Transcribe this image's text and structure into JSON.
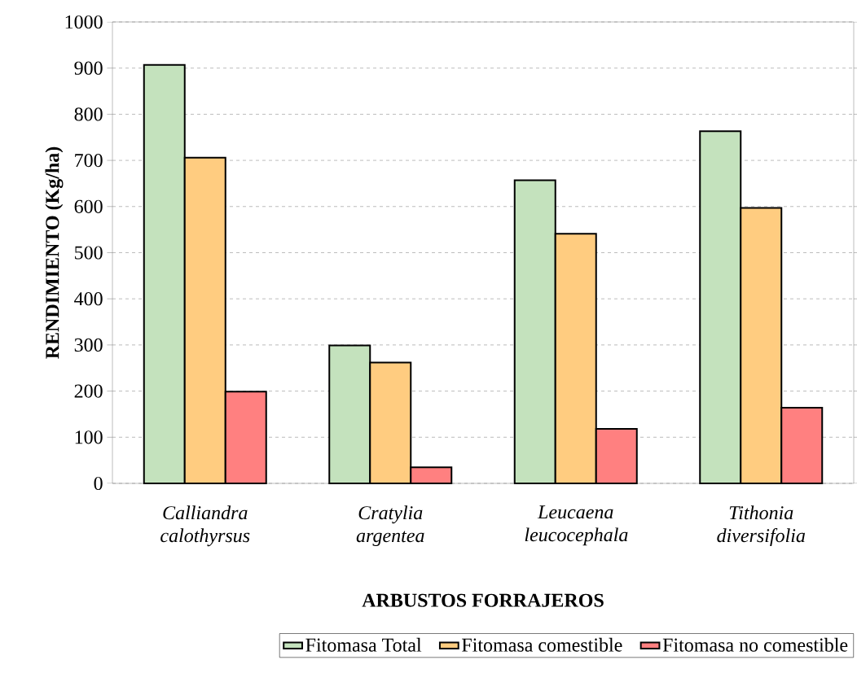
{
  "chart_data": {
    "type": "bar",
    "xlabel": "ARBUSTOS FORRAJEROS",
    "ylabel": "RENDIMIENTO (Kg/ha)",
    "categories": [
      "Calliandra calothyrsus",
      "Cratylia argentea",
      "Leucaena leucocephala",
      "Tithonia diversifolia"
    ],
    "series": [
      {
        "name": "Fitomasa Total",
        "color": "#c4e2bd",
        "values": [
          907,
          299,
          657,
          763
        ]
      },
      {
        "name": "Fitomasa comestible",
        "color": "#ffcc80",
        "values": [
          706,
          262,
          541,
          597
        ]
      },
      {
        "name": "Fitomasa no comestible",
        "color": "#ff8080",
        "values": [
          199,
          35,
          118,
          164
        ]
      }
    ],
    "ylim": [
      0,
      1000
    ],
    "yticks": [
      0,
      100,
      200,
      300,
      400,
      500,
      600,
      700,
      800,
      900,
      1000
    ],
    "grid": "y",
    "legend": "bottom"
  }
}
